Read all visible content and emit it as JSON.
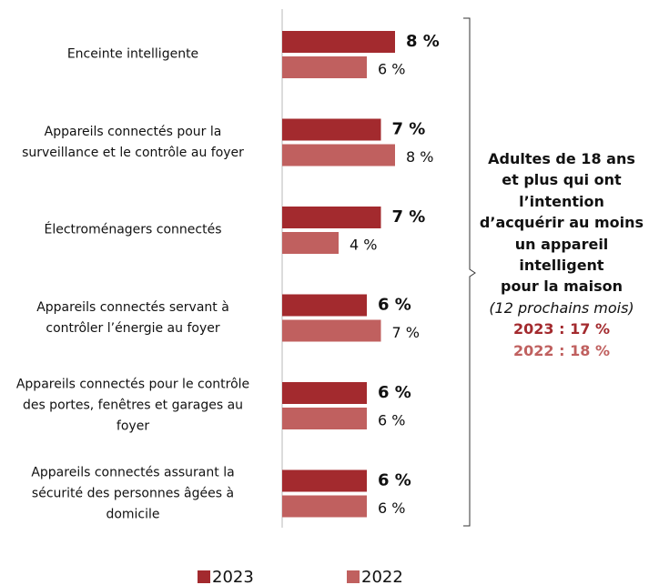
{
  "chart_data": {
    "type": "bar",
    "orientation": "horizontal",
    "categories": [
      "Enceinte intelligente",
      "Appareils connectés pour la surveillance et le contrôle au foyer",
      "Électroménagers connectés",
      "Appareils connectés servant à contrôler l’énergie au foyer",
      "Appareils connectés pour le contrôle des portes, fenêtres et garages au foyer",
      "Appareils connectés assurant la sécurité des personnes âgées à domicile"
    ],
    "series": [
      {
        "name": "2023",
        "color": "#a32a2e",
        "values": [
          8,
          7,
          7,
          6,
          6,
          6
        ],
        "value_labels": [
          "8 %",
          "7 %",
          "7 %",
          "6 %",
          "6 %",
          "6 %"
        ]
      },
      {
        "name": "2022",
        "color": "#c0605f",
        "values": [
          6,
          8,
          4,
          7,
          6,
          6
        ],
        "value_labels": [
          "6 %",
          "8 %",
          "4 %",
          "7 %",
          "6 %",
          "6 %"
        ]
      }
    ],
    "xlim": [
      0,
      10
    ],
    "legend": "bottom",
    "annotation": {
      "lines": [
        "Adultes de 18 ans",
        "et plus qui ont",
        "l’intention",
        "d’acquérir au moins",
        "un appareil",
        "intelligent",
        "pour la maison"
      ],
      "subtitle": "(12 prochains mois)",
      "totals": [
        {
          "text": "2023 : 17 %",
          "color": "#a32a2e"
        },
        {
          "text": "2022 : 18 %",
          "color": "#c0605f"
        }
      ]
    }
  }
}
